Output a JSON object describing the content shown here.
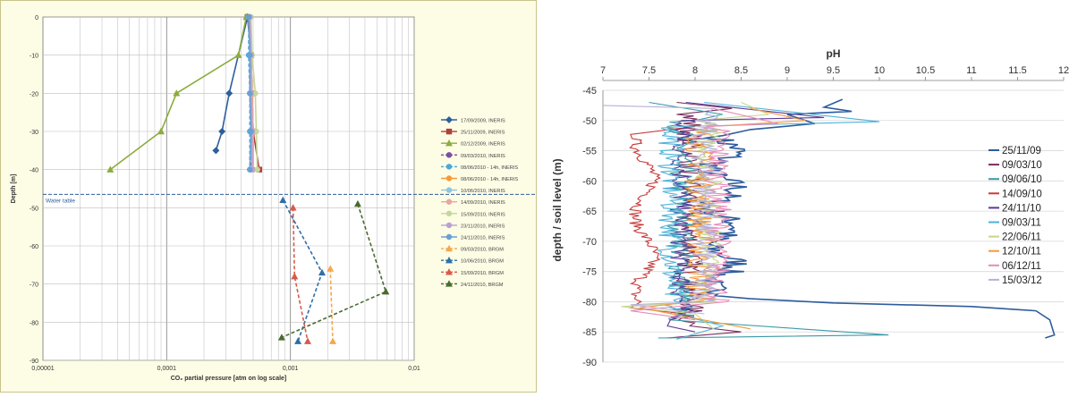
{
  "charts": [
    {
      "type": "line",
      "xlabel": "CO₂ partial pressure [atm on log scale]",
      "ylabel": "Depth [m]",
      "x_scale": "log",
      "xlim": [
        1e-05,
        0.01
      ],
      "ylim": [
        -90,
        0
      ],
      "y_ticks": [
        "0",
        "-10",
        "-20",
        "-30",
        "-40",
        "-50",
        "-60",
        "-70",
        "-80",
        "-90"
      ],
      "x_ticks": [
        "0,00001",
        "0,0001",
        "0,001",
        "0,01"
      ],
      "water_table": {
        "label": "Water table",
        "depth": -46.5
      },
      "legend_position": "right",
      "grid": true,
      "series": [
        {
          "name": "17/09/2009, INERIS",
          "color": "#2e5f9a",
          "dash": "solid",
          "marker": "diamond",
          "points": [
            [
              0.00045,
              0
            ],
            [
              0.00032,
              -20
            ],
            [
              0.00028,
              -30
            ],
            [
              0.00025,
              -35
            ]
          ]
        },
        {
          "name": "25/11/2009, INERIS",
          "color": "#b0403c",
          "dash": "solid",
          "marker": "square",
          "points": [
            [
              0.00045,
              0
            ],
            [
              0.00048,
              -10
            ],
            [
              0.00049,
              -20
            ],
            [
              0.0005,
              -30
            ],
            [
              0.00056,
              -40
            ]
          ]
        },
        {
          "name": "02/12/2009, INERIS",
          "color": "#8cac3c",
          "dash": "solid",
          "marker": "triangle",
          "points": [
            [
              0.00044,
              0
            ],
            [
              0.00038,
              -10
            ],
            [
              0.00012,
              -20
            ],
            [
              9e-05,
              -30
            ],
            [
              3.5e-05,
              -40
            ]
          ]
        },
        {
          "name": "09/03/2010, INERIS",
          "color": "#7a4fa0",
          "dash": "dashed",
          "marker": "circle",
          "points": [
            [
              0.00046,
              0
            ],
            [
              0.00047,
              -10
            ],
            [
              0.00048,
              -20
            ],
            [
              0.00049,
              -30
            ],
            [
              0.00048,
              -40
            ]
          ]
        },
        {
          "name": "08/06/2010 - 14h, INERIS",
          "color": "#4ca7d8",
          "dash": "dashed",
          "marker": "circle",
          "points": [
            [
              0.00046,
              0
            ],
            [
              0.00046,
              -10
            ],
            [
              0.00047,
              -20
            ],
            [
              0.00047,
              -30
            ],
            [
              0.00047,
              -40
            ]
          ]
        },
        {
          "name": "08/06/2010 - 14h, INERIS",
          "color": "#f59a3c",
          "dash": "solid",
          "marker": "circle",
          "points": [
            [
              0.00047,
              0
            ],
            [
              0.00048,
              -10
            ],
            [
              0.00049,
              -20
            ],
            [
              0.0005,
              -30
            ],
            [
              0.0005,
              -40
            ]
          ]
        },
        {
          "name": "10/06/2010, INERIS",
          "color": "#8ec6e0",
          "dash": "solid",
          "marker": "circle",
          "points": [
            [
              0.00046,
              0
            ],
            [
              0.00047,
              -10
            ],
            [
              0.00048,
              -20
            ],
            [
              0.00048,
              -30
            ],
            [
              0.00049,
              -40
            ]
          ]
        },
        {
          "name": "14/09/2010, INERIS",
          "color": "#e8a7a4",
          "dash": "solid",
          "marker": "circle",
          "points": [
            [
              0.00047,
              0
            ],
            [
              0.00048,
              -10
            ],
            [
              0.00049,
              -20
            ],
            [
              0.0005,
              -30
            ],
            [
              0.0005,
              -40
            ]
          ]
        },
        {
          "name": "15/09/2010, INERIS",
          "color": "#c5d89a",
          "dash": "solid",
          "marker": "circle",
          "points": [
            [
              0.00048,
              0
            ],
            [
              0.00049,
              -10
            ],
            [
              0.00052,
              -20
            ],
            [
              0.00053,
              -30
            ],
            [
              0.00054,
              -40
            ]
          ]
        },
        {
          "name": "23/11/2010, INERIS",
          "color": "#b6a3cf",
          "dash": "solid",
          "marker": "circle",
          "points": [
            [
              0.00047,
              0
            ],
            [
              0.00048,
              -10
            ],
            [
              0.00048,
              -20
            ],
            [
              0.00049,
              -30
            ],
            [
              0.00049,
              -40
            ]
          ]
        },
        {
          "name": "24/11/2010, INERIS",
          "color": "#6aa0d4",
          "dash": "solid",
          "marker": "circle",
          "points": [
            [
              0.00046,
              0
            ],
            [
              0.00047,
              -10
            ],
            [
              0.00047,
              -20
            ],
            [
              0.00048,
              -30
            ],
            [
              0.00047,
              -40
            ]
          ]
        },
        {
          "name": "09/03/2010, BRGM",
          "color": "#f5a84c",
          "dash": "dashed",
          "marker": "triangle",
          "points": [
            [
              0.0021,
              -66
            ],
            [
              0.0022,
              -85
            ]
          ]
        },
        {
          "name": "10/06/2010, BRGM",
          "color": "#2e6ea8",
          "dash": "dashed",
          "marker": "triangle",
          "points": [
            [
              0.00087,
              -48
            ],
            [
              0.0018,
              -67
            ],
            [
              0.00115,
              -85
            ]
          ]
        },
        {
          "name": "15/09/2010, BRGM",
          "color": "#d75a4a",
          "dash": "dashed",
          "marker": "triangle",
          "points": [
            [
              0.00105,
              -50
            ],
            [
              0.00108,
              -68
            ],
            [
              0.00138,
              -85
            ]
          ]
        },
        {
          "name": "24/11/2010, BRGM",
          "color": "#4a6a2e",
          "dash": "dashed",
          "marker": "triangle",
          "points": [
            [
              0.0035,
              -49
            ],
            [
              0.0059,
              -72
            ],
            [
              0.00085,
              -84
            ]
          ]
        }
      ]
    },
    {
      "type": "line",
      "xlabel": "pH",
      "ylabel": "depth / soil level (m)",
      "xlim": [
        7,
        12
      ],
      "ylim": [
        -90,
        -45
      ],
      "x_ticks": [
        "7",
        "7.5",
        "8",
        "8.5",
        "9",
        "9.5",
        "10",
        "10.5",
        "11",
        "11.5",
        "12"
      ],
      "y_ticks": [
        "-45",
        "-50",
        "-55",
        "-60",
        "-65",
        "-70",
        "-75",
        "-80",
        "-85",
        "-90"
      ],
      "x_axis_position": "top",
      "legend_position": "right",
      "grid": true,
      "series": [
        {
          "name": "25/11/09",
          "color": "#2e5c9e"
        },
        {
          "name": "09/03/10",
          "color": "#7a2e5c"
        },
        {
          "name": "09/06/10",
          "color": "#3a9aa8"
        },
        {
          "name": "14/09/10",
          "color": "#c83a3a"
        },
        {
          "name": "24/11/10",
          "color": "#5a3a96"
        },
        {
          "name": "09/03/11",
          "color": "#4fb2d8"
        },
        {
          "name": "22/06/11",
          "color": "#c8d68a"
        },
        {
          "name": "12/10/11",
          "color": "#f29a3c"
        },
        {
          "name": "06/12/11",
          "color": "#e88ab8"
        },
        {
          "name": "15/03/12",
          "color": "#b8b0d8"
        }
      ]
    }
  ]
}
